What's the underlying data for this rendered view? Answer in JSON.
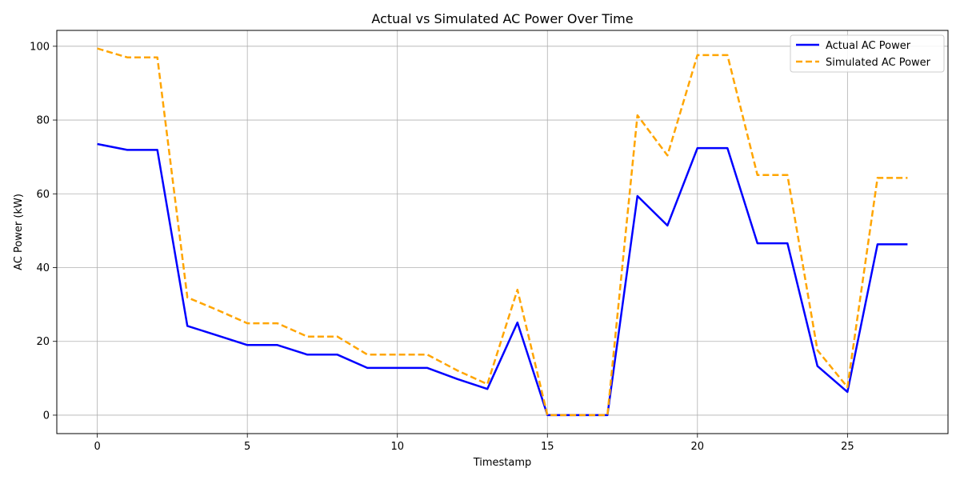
{
  "chart_data": {
    "type": "line",
    "title": "Actual vs Simulated AC Power Over Time",
    "xlabel": "Timestamp",
    "ylabel": "AC Power (kW)",
    "xlim": [
      -1.35,
      28.35
    ],
    "ylim": [
      -5,
      104.3
    ],
    "xticks": [
      0,
      5,
      10,
      15,
      20,
      25
    ],
    "yticks": [
      0,
      20,
      40,
      60,
      80,
      100
    ],
    "grid": true,
    "legend_position": "top-right",
    "x": [
      0,
      1,
      2,
      3,
      4,
      5,
      6,
      7,
      8,
      9,
      10,
      11,
      12,
      13,
      14,
      15,
      16,
      17,
      18,
      19,
      20,
      21,
      22,
      23,
      24,
      25,
      26,
      27
    ],
    "series": [
      {
        "name": "Actual AC Power",
        "color": "#0000ff",
        "style": "solid",
        "values": [
          73.5,
          71.9,
          71.9,
          24.2,
          21.6,
          19.0,
          19.0,
          16.4,
          16.4,
          12.8,
          12.8,
          12.8,
          9.8,
          7.1,
          25.1,
          0,
          0,
          0,
          59.4,
          51.4,
          72.4,
          72.4,
          46.6,
          46.6,
          13.3,
          6.3,
          46.3,
          46.3
        ]
      },
      {
        "name": "Simulated AC Power",
        "color": "#ffa500",
        "style": "dashed",
        "values": [
          99.4,
          97.0,
          97.0,
          31.9,
          28.5,
          24.9,
          24.9,
          21.3,
          21.3,
          16.4,
          16.4,
          16.4,
          12.1,
          8.4,
          34.0,
          0,
          0,
          0,
          81.3,
          70.4,
          97.6,
          97.6,
          65.1,
          65.1,
          17.6,
          7.6,
          64.3,
          64.3
        ]
      }
    ]
  }
}
